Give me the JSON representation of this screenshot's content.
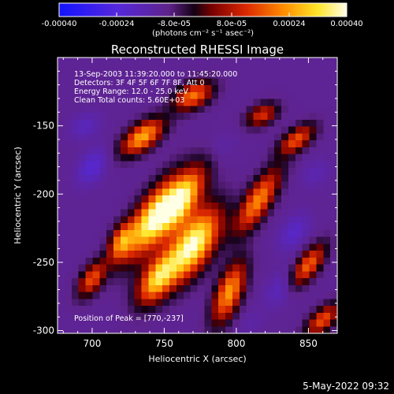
{
  "chart_data": {
    "type": "heatmap",
    "title": "Reconstructed RHESSI Image",
    "xlabel": "Heliocentric X (arcsec)",
    "ylabel": "Heliocentric Y (arcsec)",
    "xlim": [
      676,
      870
    ],
    "ylim": [
      -302,
      -100
    ],
    "x_ticks": [
      700,
      750,
      800,
      850
    ],
    "y_ticks": [
      -150,
      -200,
      -250,
      -300
    ],
    "colorbar": {
      "range": [
        -0.0004,
        0.0004
      ],
      "ticks": [
        {
          "value": -0.0004,
          "label": "-0.00040"
        },
        {
          "value": -0.00024,
          "label": "-0.00024"
        },
        {
          "value": -8e-05,
          "label": "-8.0e-05"
        },
        {
          "value": 8e-05,
          "label": "8.0e-05"
        },
        {
          "value": 0.00024,
          "label": "0.00024"
        },
        {
          "value": 0.0004,
          "label": "0.00040"
        }
      ],
      "unit_label": "(photons cm⁻² s⁻¹ asec⁻²)"
    },
    "info_lines": [
      "13-Sep-2003 11:39:20.000 to 11:45:20.000",
      "Detectors: 3F 4F 5F 6F 7F 8F, Att 0",
      "Energy Range: 12.0 - 25.0 keV",
      "Clean     Total counts: 5.60E+03"
    ],
    "peak_label": "Position of Peak = [770,-237]",
    "peak": [
      770,
      -237
    ],
    "sources": [
      {
        "x": 770,
        "y": -237,
        "peak": 0.0004,
        "sx": 20,
        "sy": 9,
        "angle": 60
      },
      {
        "x": 742,
        "y": -218,
        "peak": 0.00036,
        "sx": 22,
        "sy": 8,
        "angle": 60
      },
      {
        "x": 762,
        "y": -205,
        "peak": 0.00032,
        "sx": 18,
        "sy": 7,
        "angle": 60
      },
      {
        "x": 745,
        "y": -262,
        "peak": 0.00028,
        "sx": 14,
        "sy": 7,
        "angle": 60
      },
      {
        "x": 735,
        "y": -158,
        "peak": 0.00026,
        "sx": 12,
        "sy": 6,
        "angle": 40
      },
      {
        "x": 795,
        "y": -272,
        "peak": 0.00024,
        "sx": 16,
        "sy": 6,
        "angle": 70
      },
      {
        "x": 815,
        "y": -205,
        "peak": 0.00022,
        "sx": 18,
        "sy": 6,
        "angle": 60
      },
      {
        "x": 770,
        "y": -128,
        "peak": 0.0002,
        "sx": 10,
        "sy": 6,
        "angle": 30
      },
      {
        "x": 720,
        "y": -235,
        "peak": 0.00018,
        "sx": 10,
        "sy": 5,
        "angle": 70
      },
      {
        "x": 700,
        "y": -262,
        "peak": 0.00016,
        "sx": 10,
        "sy": 5,
        "angle": 60
      },
      {
        "x": 850,
        "y": -252,
        "peak": 0.00018,
        "sx": 12,
        "sy": 5,
        "angle": 55
      },
      {
        "x": 860,
        "y": -292,
        "peak": 0.00016,
        "sx": 10,
        "sy": 5,
        "angle": 45
      },
      {
        "x": 842,
        "y": -160,
        "peak": 0.00016,
        "sx": 10,
        "sy": 5,
        "angle": 40
      },
      {
        "x": 818,
        "y": -142,
        "peak": 0.00012,
        "sx": 8,
        "sy": 5,
        "angle": 30
      },
      {
        "x": 700,
        "y": -180,
        "peak": -0.00022,
        "sx": 10,
        "sy": 6,
        "angle": 60
      },
      {
        "x": 695,
        "y": -150,
        "peak": -0.00018,
        "sx": 8,
        "sy": 6,
        "angle": 40
      },
      {
        "x": 840,
        "y": -228,
        "peak": -0.0002,
        "sx": 10,
        "sy": 6,
        "angle": 60
      },
      {
        "x": 830,
        "y": -270,
        "peak": -0.00018,
        "sx": 10,
        "sy": 6,
        "angle": 60
      },
      {
        "x": 790,
        "y": -165,
        "peak": -0.00014,
        "sx": 8,
        "sy": 6,
        "angle": 50
      },
      {
        "x": 855,
        "y": -185,
        "peak": -0.00016,
        "sx": 8,
        "sy": 6,
        "angle": 50
      },
      {
        "x": 810,
        "y": -295,
        "peak": -0.00014,
        "sx": 8,
        "sy": 5,
        "angle": 60
      }
    ],
    "base_level": -0.00011
  },
  "footer": {
    "date": "5-May-2022 09:32"
  }
}
